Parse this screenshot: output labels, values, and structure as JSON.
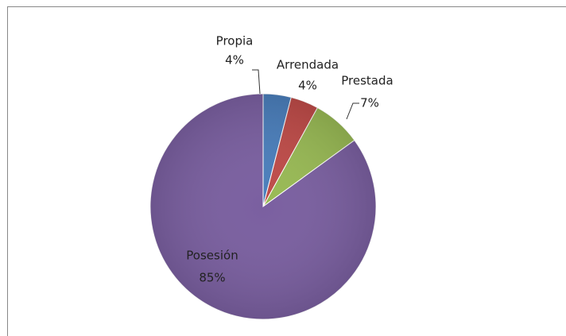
{
  "chart_data": {
    "type": "pie",
    "categories": [
      "Propia",
      "Arrendada",
      "Prestada",
      "Posesión"
    ],
    "values": [
      4,
      4,
      7,
      85
    ],
    "value_labels": [
      "4%",
      "4%",
      "7%",
      "85%"
    ],
    "colors": [
      "#4a7ebb",
      "#be4b48",
      "#98b954",
      "#7a5fa0"
    ]
  }
}
